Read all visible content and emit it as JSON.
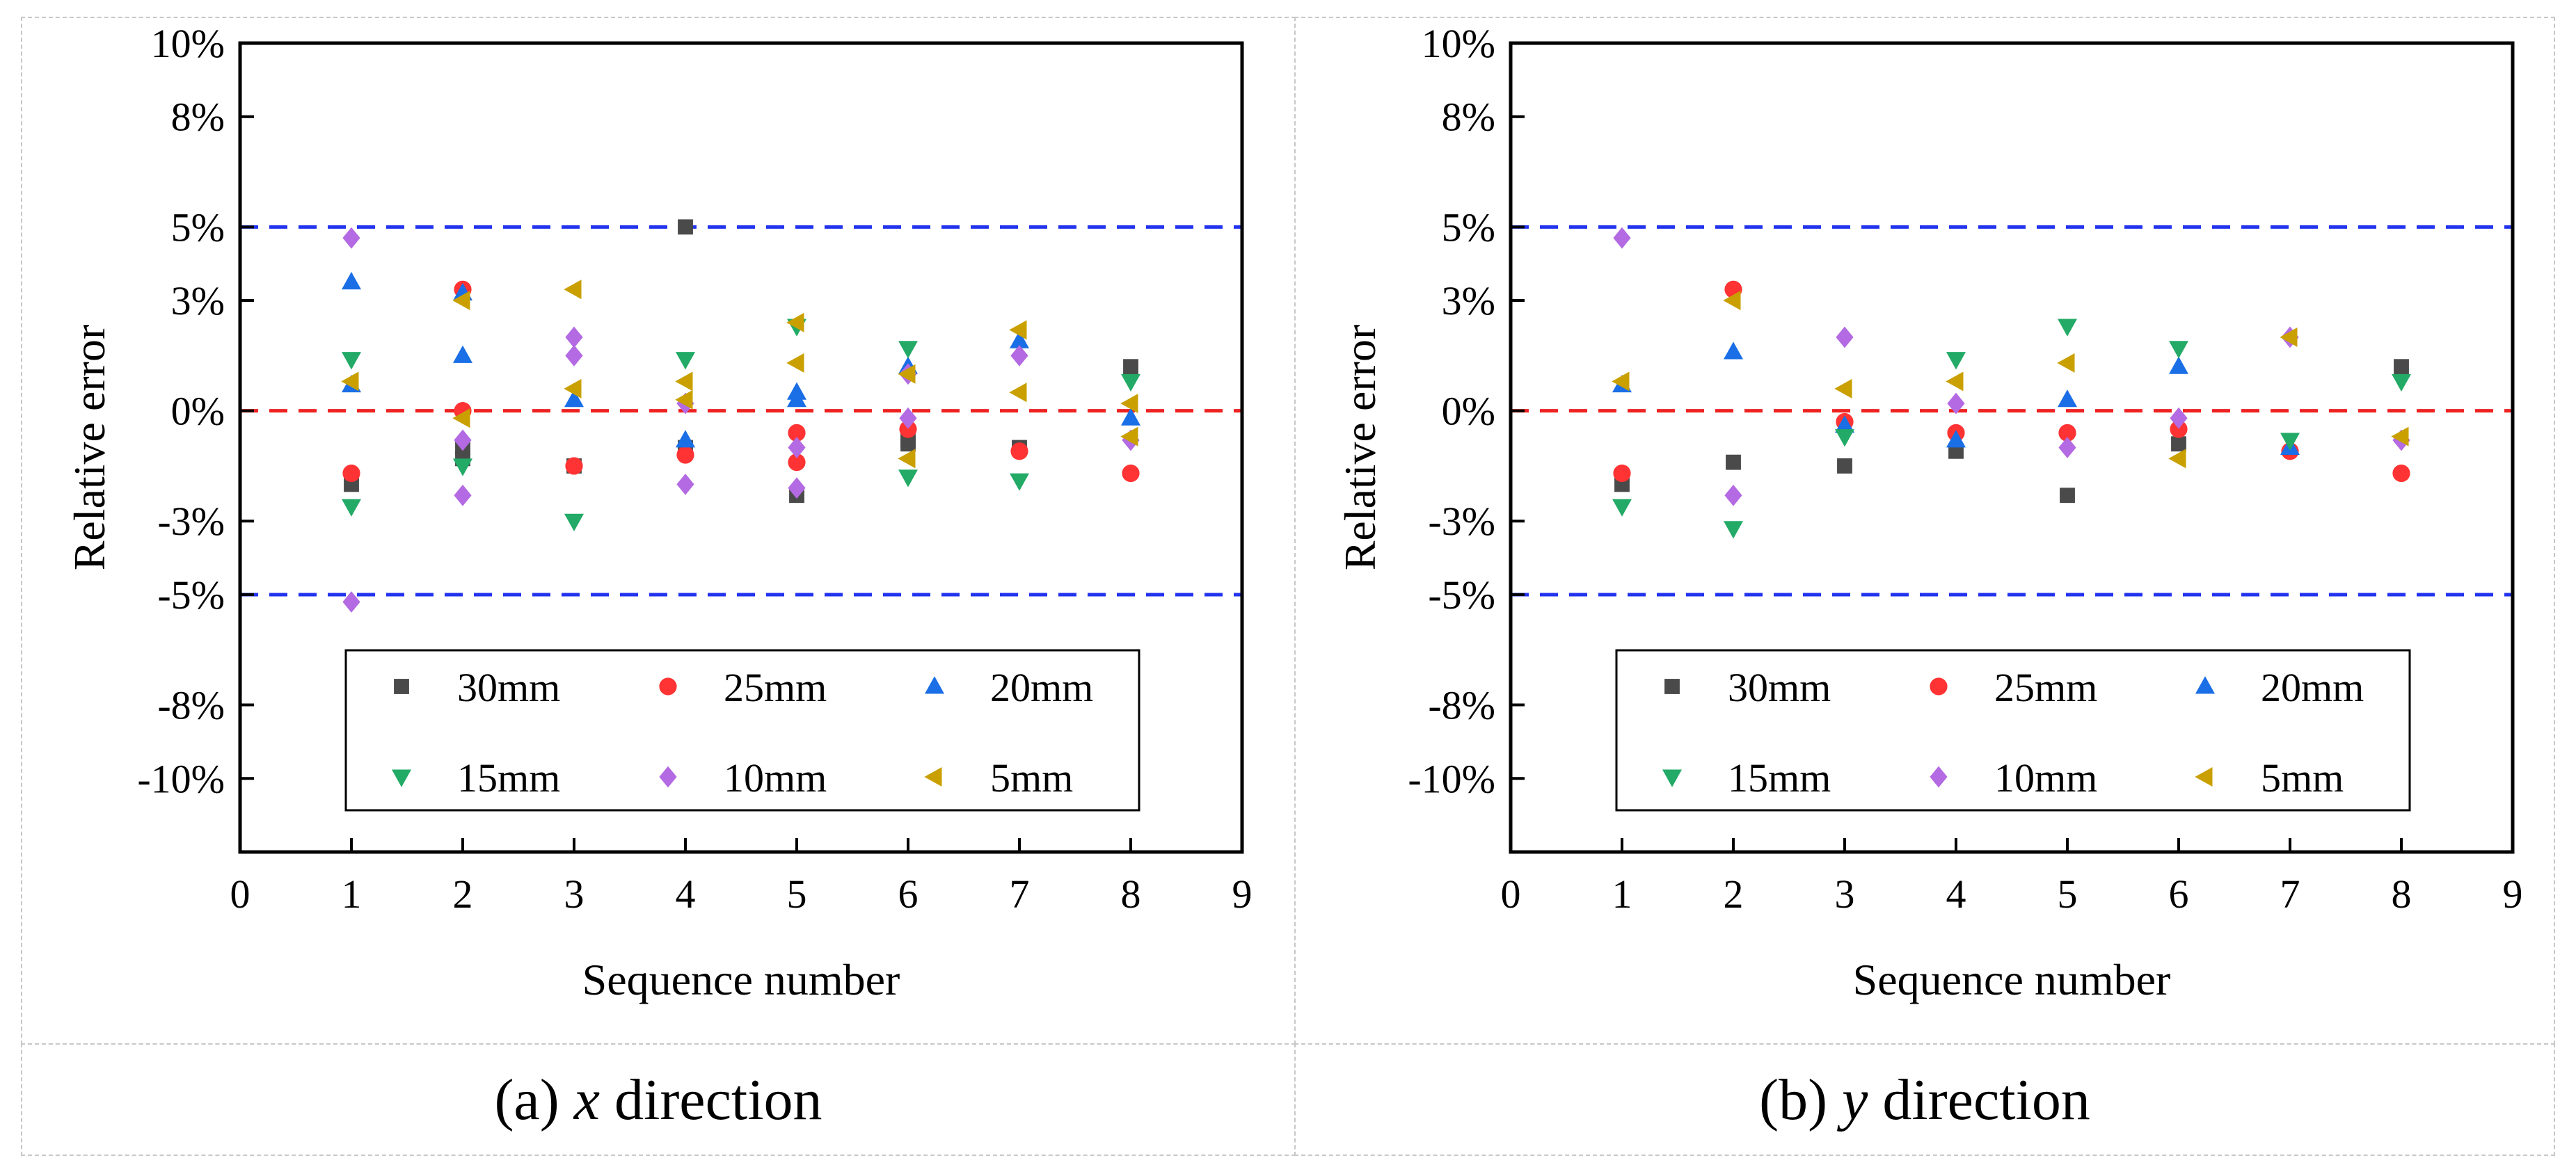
{
  "captions": {
    "a": {
      "prefix": "(a) ",
      "var": "x",
      "suffix": " direction"
    },
    "b": {
      "prefix": "(b) ",
      "var": "y",
      "suffix": " direction"
    }
  },
  "colors": {
    "30mm": "#4a4a4a",
    "25mm": "#ff3333",
    "20mm": "#1a6ee6",
    "15mm": "#22aa66",
    "10mm": "#b36ae2",
    "5mm": "#c9a000",
    "threshold_line": "#2233ee",
    "zero_line": "#ee2222"
  },
  "chart_data": [
    {
      "type": "scatter",
      "title": "",
      "xlabel": "Sequence number",
      "ylabel": "Relative error",
      "xlim": [
        0,
        9
      ],
      "ylim": [
        -12,
        10
      ],
      "xticks": [
        0,
        1,
        2,
        3,
        4,
        5,
        6,
        7,
        8,
        9
      ],
      "xtick_labels": [
        "0",
        "1",
        "2",
        "3",
        "4",
        "5",
        "6",
        "7",
        "8",
        "9"
      ],
      "yticks": [
        10,
        8,
        5,
        3,
        0,
        -3,
        -5,
        -8,
        -10
      ],
      "ytick_labels": [
        "10%",
        "8%",
        "5%",
        "3%",
        "0%",
        "-3%",
        "-5%",
        "-8%",
        "-10%"
      ],
      "reference_lines": [
        {
          "y": 5,
          "style": "dashed",
          "color": "blue"
        },
        {
          "y": -5,
          "style": "dashed",
          "color": "blue"
        },
        {
          "y": 0,
          "style": "dashed",
          "color": "red"
        }
      ],
      "legend_position": "lower-center",
      "series": [
        {
          "name": "30mm",
          "marker": "square",
          "x": [
            1,
            2,
            2,
            3,
            4,
            4,
            5,
            6,
            6,
            7,
            8
          ],
          "y": [
            -2.0,
            -1.3,
            -1.0,
            -1.5,
            5.0,
            -1.0,
            -2.3,
            -0.8,
            -0.9,
            -1.0,
            1.2
          ]
        },
        {
          "name": "25mm",
          "marker": "circle",
          "x": [
            1,
            2,
            2,
            3,
            4,
            5,
            5,
            6,
            7,
            8
          ],
          "y": [
            -1.7,
            3.3,
            0.0,
            -1.5,
            -1.2,
            -0.6,
            -1.4,
            -0.5,
            -1.1,
            -1.7
          ]
        },
        {
          "name": "20mm",
          "marker": "triangle-up",
          "x": [
            1,
            1,
            2,
            2,
            3,
            4,
            5,
            5,
            6,
            7,
            8
          ],
          "y": [
            3.5,
            0.7,
            3.2,
            1.5,
            0.3,
            -0.8,
            0.5,
            0.3,
            1.2,
            1.9,
            -0.2
          ]
        },
        {
          "name": "15mm",
          "marker": "triangle-down",
          "x": [
            1,
            1,
            2,
            3,
            4,
            5,
            6,
            6,
            7,
            8
          ],
          "y": [
            1.4,
            -2.6,
            -1.5,
            -3.0,
            1.4,
            2.3,
            1.7,
            -1.8,
            -1.9,
            0.8
          ]
        },
        {
          "name": "10mm",
          "marker": "diamond",
          "x": [
            1,
            1,
            2,
            2,
            3,
            3,
            4,
            4,
            5,
            5,
            6,
            6,
            7,
            8
          ],
          "y": [
            4.7,
            -5.2,
            -0.8,
            -2.3,
            2.0,
            1.5,
            0.2,
            -2.0,
            -1.0,
            -2.1,
            1.0,
            -0.2,
            1.5,
            -0.8
          ]
        },
        {
          "name": "5mm",
          "marker": "triangle-left",
          "x": [
            1,
            2,
            2,
            3,
            3,
            4,
            4,
            5,
            5,
            6,
            6,
            7,
            7,
            8,
            8
          ],
          "y": [
            0.8,
            3.0,
            -0.2,
            3.3,
            0.6,
            0.8,
            0.3,
            2.4,
            1.3,
            1.0,
            -1.3,
            2.2,
            0.5,
            0.2,
            -0.7
          ]
        }
      ]
    },
    {
      "type": "scatter",
      "title": "",
      "xlabel": "Sequence number",
      "ylabel": "Relative error",
      "xlim": [
        0,
        9
      ],
      "ylim": [
        -12,
        10
      ],
      "xticks": [
        0,
        1,
        2,
        3,
        4,
        5,
        6,
        7,
        8,
        9
      ],
      "xtick_labels": [
        "0",
        "1",
        "2",
        "3",
        "4",
        "5",
        "6",
        "7",
        "8",
        "9"
      ],
      "yticks": [
        10,
        8,
        5,
        3,
        0,
        -3,
        -5,
        -8,
        -10
      ],
      "ytick_labels": [
        "10%",
        "8%",
        "5%",
        "3%",
        "0%",
        "-3%",
        "-5%",
        "-8%",
        "-10%"
      ],
      "reference_lines": [
        {
          "y": 5,
          "style": "dashed",
          "color": "blue"
        },
        {
          "y": -5,
          "style": "dashed",
          "color": "blue"
        },
        {
          "y": 0,
          "style": "dashed",
          "color": "red"
        }
      ],
      "legend_position": "lower-center",
      "series": [
        {
          "name": "30mm",
          "marker": "square",
          "x": [
            1,
            2,
            3,
            4,
            5,
            6,
            8
          ],
          "y": [
            -2.0,
            -1.4,
            -1.5,
            -1.1,
            -2.3,
            -0.9,
            1.2
          ]
        },
        {
          "name": "25mm",
          "marker": "circle",
          "x": [
            1,
            2,
            3,
            4,
            5,
            6,
            7,
            8
          ],
          "y": [
            -1.7,
            3.3,
            -0.3,
            -0.6,
            -0.6,
            -0.5,
            -1.1,
            -1.7
          ]
        },
        {
          "name": "20mm",
          "marker": "triangle-up",
          "x": [
            1,
            2,
            3,
            4,
            5,
            6,
            7
          ],
          "y": [
            0.7,
            1.6,
            -0.4,
            -0.8,
            0.3,
            1.2,
            -1.0
          ]
        },
        {
          "name": "15mm",
          "marker": "triangle-down",
          "x": [
            1,
            2,
            3,
            4,
            5,
            6,
            7,
            8
          ],
          "y": [
            -2.6,
            -3.2,
            -0.7,
            1.4,
            2.3,
            1.7,
            -0.8,
            0.8
          ]
        },
        {
          "name": "10mm",
          "marker": "diamond",
          "x": [
            1,
            2,
            3,
            4,
            5,
            6,
            7,
            8
          ],
          "y": [
            4.7,
            -2.3,
            2.0,
            0.2,
            -1.0,
            -0.2,
            2.0,
            -0.8
          ]
        },
        {
          "name": "5mm",
          "marker": "triangle-left",
          "x": [
            1,
            2,
            3,
            4,
            5,
            6,
            7,
            8
          ],
          "y": [
            0.8,
            3.0,
            0.6,
            0.8,
            1.3,
            -1.3,
            2.0,
            -0.7
          ]
        }
      ]
    }
  ]
}
